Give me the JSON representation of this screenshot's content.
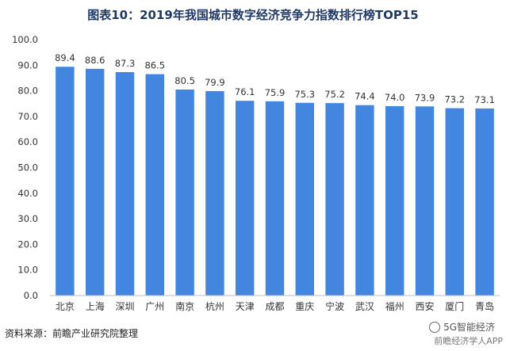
{
  "title": "图表10：2019年我国城市数字经济竞争力指数排行榜TOP15",
  "source": "资料来源：前瞻产业研究院整理",
  "watermark": {
    "name": "5G智能经济",
    "sub": "前瞻经济学人APP"
  },
  "colors": {
    "bar": "#4386e0",
    "grid": "#d9d9d9",
    "text": "#333333",
    "title": "#1f3864"
  },
  "chart_data": {
    "type": "bar",
    "categories": [
      "北京",
      "上海",
      "深圳",
      "广州",
      "南京",
      "杭州",
      "天津",
      "成都",
      "重庆",
      "宁波",
      "武汉",
      "福州",
      "西安",
      "厦门",
      "青岛"
    ],
    "values": [
      89.4,
      88.6,
      87.3,
      86.5,
      80.5,
      79.9,
      76.1,
      75.9,
      75.3,
      75.2,
      74.4,
      74.0,
      73.9,
      73.2,
      73.1
    ],
    "data_labels": [
      "89.4",
      "88.6",
      "87.3",
      "86.5",
      "80.5",
      "79.9",
      "76.1",
      "75.9",
      "75.3",
      "75.2",
      "74.4",
      "74.0",
      "73.9",
      "73.2",
      "73.1"
    ],
    "y_ticks": [
      "0.0",
      "10.0",
      "20.0",
      "30.0",
      "40.0",
      "50.0",
      "60.0",
      "70.0",
      "80.0",
      "90.0",
      "100.0"
    ],
    "ylim": [
      0,
      100
    ],
    "grid": false,
    "xlabel": "",
    "ylabel": ""
  }
}
